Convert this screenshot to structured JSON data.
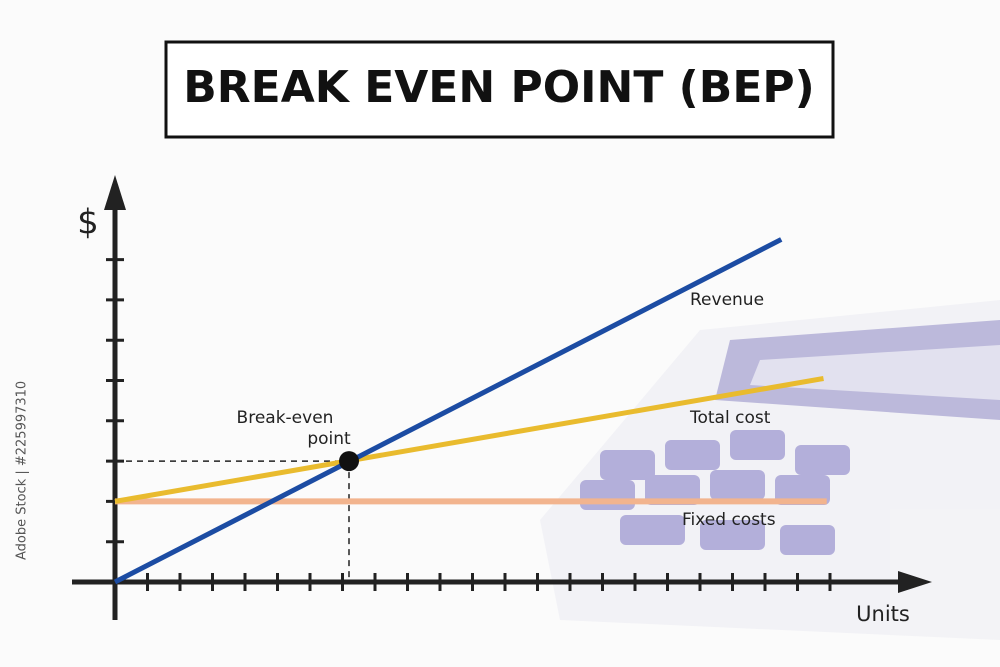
{
  "chart_data": {
    "type": "line",
    "title": "BREAK EVEN POINT (BEP)",
    "y_label": "$",
    "x_label": "Units",
    "xlim": [
      0,
      25
    ],
    "ylim": [
      0,
      10
    ],
    "xticks": [
      1,
      2,
      3,
      4,
      5,
      6,
      7,
      8,
      9,
      10,
      11,
      12,
      13,
      14,
      15,
      16,
      17,
      18,
      19,
      20,
      21,
      22
    ],
    "yticks": [
      1,
      2,
      3,
      4,
      5,
      6,
      7,
      8
    ],
    "tick_labels": false,
    "series": [
      {
        "name": "Revenue",
        "color": "#1c4ca3",
        "x": [
          0,
          20.5
        ],
        "values": [
          0,
          8.5
        ]
      },
      {
        "name": "Total cost",
        "color": "#e9bb2e",
        "x": [
          0,
          21.8
        ],
        "values": [
          2,
          5.05
        ]
      },
      {
        "name": "Fixed costs",
        "color": "#f2b48e",
        "x": [
          0,
          21.9
        ],
        "values": [
          2,
          2
        ]
      }
    ],
    "break_even": {
      "label": [
        "Break-even",
        "point"
      ],
      "x": 7.2,
      "y": 3
    },
    "watermark": "Adobe Stock | #225997310"
  }
}
